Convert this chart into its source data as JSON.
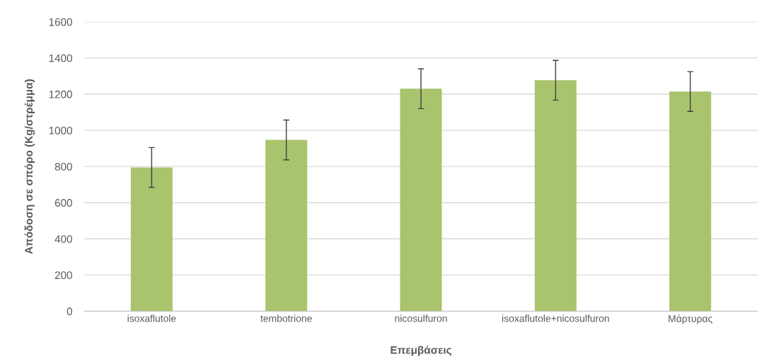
{
  "chart_data": {
    "type": "bar",
    "xlabel": "Επεμβάσεις",
    "ylabel": "Απόδοση σε σπόρο (Kg/στρέμμα)",
    "categories": [
      "isoxaflutole",
      "tembotrione",
      "nicosulfuron",
      "isoxaflutole+nicosulfuron",
      "Μάρτυρας"
    ],
    "values": [
      795,
      947,
      1230,
      1277,
      1215
    ],
    "errors": [
      110,
      110,
      110,
      110,
      110
    ],
    "color": "#a9c46c",
    "ylim": [
      0,
      1600
    ],
    "yticks": [
      0,
      200,
      400,
      600,
      800,
      1000,
      1200,
      1400,
      1600
    ],
    "grid": "y"
  }
}
